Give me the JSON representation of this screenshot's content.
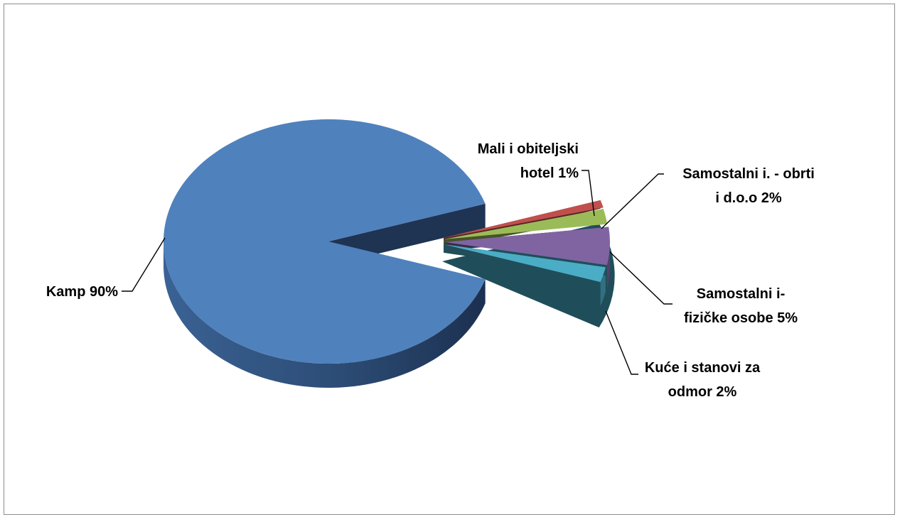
{
  "chart_data": {
    "type": "pie",
    "title": "",
    "style": "3d-exploded",
    "slices": [
      {
        "name": "Kamp",
        "value": 90,
        "label": "Kamp 90%",
        "color": "#4f81bd",
        "label_lines": [
          "Kamp 90%"
        ]
      },
      {
        "name": "Mali i obiteljski hotel",
        "value": 1,
        "label": "Mali i obiteljski hotel 1%",
        "color": "#c0504d",
        "label_lines": [
          "Mali i obiteljski",
          "hotel 1%"
        ]
      },
      {
        "name": "Samostalni i. - obrti i d.o.o",
        "value": 2,
        "label": "Samostalni i. - obrti i d.o.o 2%",
        "color": "#9bbb59",
        "label_lines": [
          "Samostalni i. - obrti",
          "i d.o.o 2%"
        ]
      },
      {
        "name": "Samostalni i- fizičke osobe",
        "value": 5,
        "label": "Samostalni i- fizičke osobe 5%",
        "color": "#8064a2",
        "label_lines": [
          "Samostalni i-",
          "fizičke osobe 5%"
        ]
      },
      {
        "name": "Kuće i stanovi za odmor",
        "value": 2,
        "label": "Kuće i stanovi za odmor 2%",
        "color": "#4bacc6",
        "label_lines": [
          "Kuće i stanovi za",
          "odmor 2%"
        ]
      }
    ],
    "legend": "none",
    "data_labels": "outside-with-leader-lines"
  }
}
